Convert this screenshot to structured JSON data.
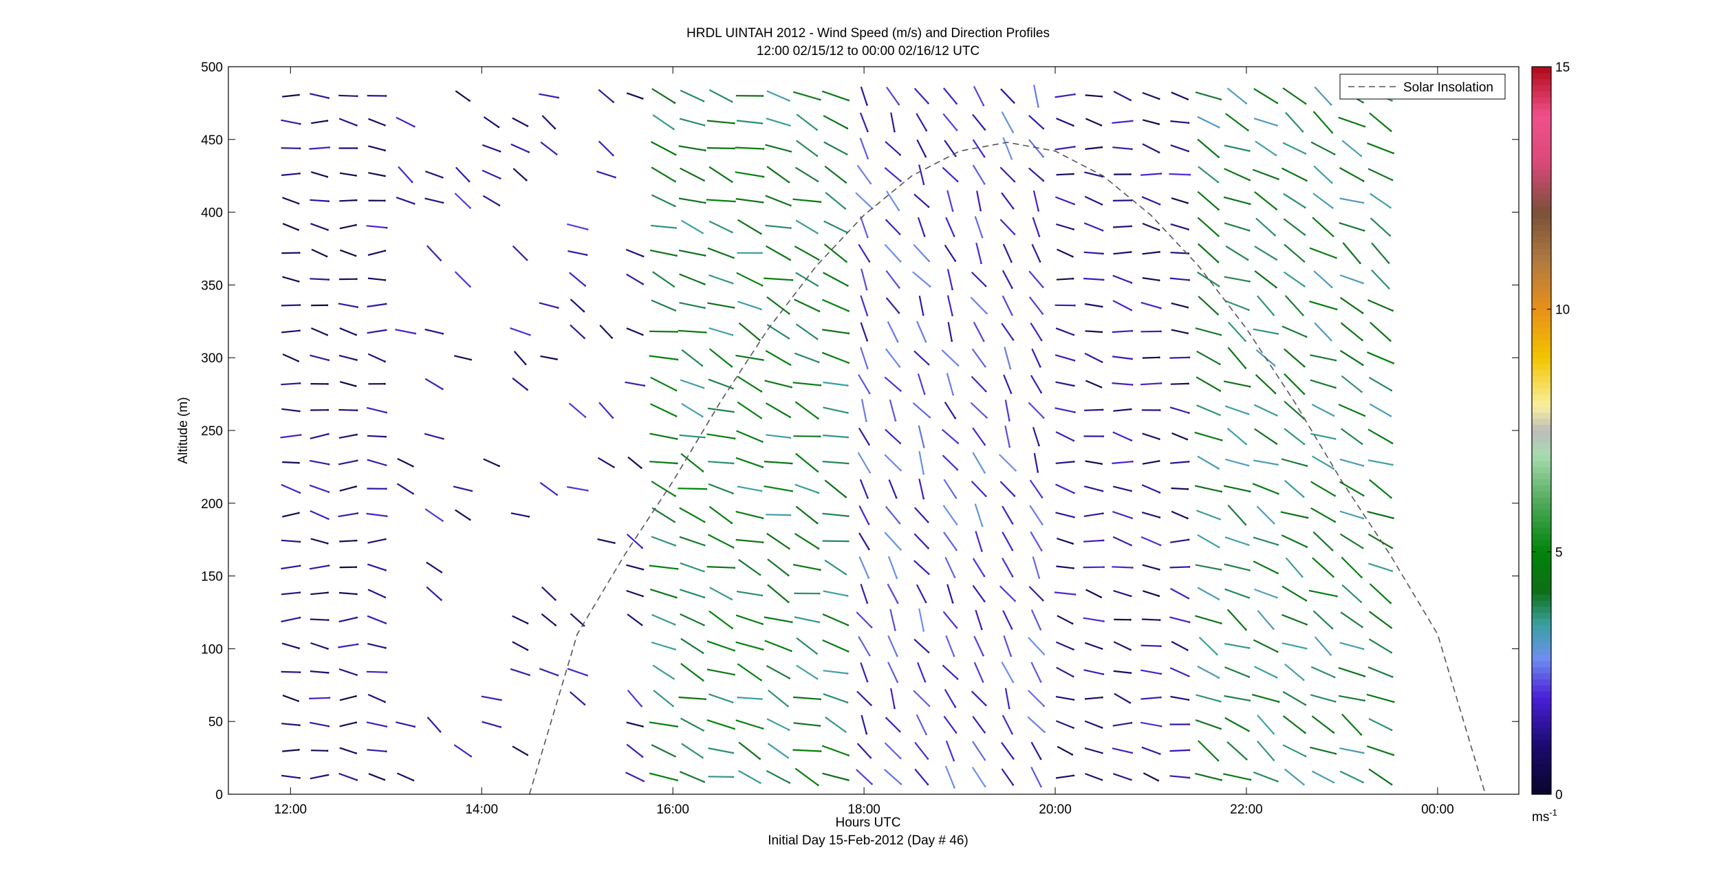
{
  "chart_data": {
    "type": "wind_barb_profile",
    "title": "HRDL UINTAH 2012 - Wind Speed (m/s) and Direction Profiles",
    "subtitle": "12:00 02/15/12 to 00:00 02/16/12  UTC",
    "xlabel": "Hours UTC",
    "xlabel_sub": "Initial Day 15-Feb-2012 (Day # 46)",
    "ylabel": "Altitude (m)",
    "x_unit": "hours UTC from 12:00 02/15/12",
    "xlim": [
      11.35,
      24.85
    ],
    "ylim": [
      0,
      500
    ],
    "x_ticks": [
      12,
      14,
      16,
      18,
      20,
      22,
      24
    ],
    "x_tick_labels": [
      "12:00",
      "14:00",
      "16:00",
      "18:00",
      "20:00",
      "22:00",
      "00:00"
    ],
    "y_ticks": [
      0,
      50,
      100,
      150,
      200,
      250,
      300,
      350,
      400,
      450,
      500
    ],
    "y_tick_labels": [
      "0",
      "50",
      "100",
      "150",
      "200",
      "250",
      "300",
      "350",
      "400",
      "450",
      "500"
    ],
    "legend": {
      "entries": [
        "Solar Insolation"
      ],
      "placement": "top-right",
      "line_style": "dashed",
      "color": "#555555"
    },
    "colorbar": {
      "range": [
        0,
        15
      ],
      "ticks": [
        0,
        5,
        10,
        15
      ],
      "tick_labels": [
        "0",
        "5",
        "10",
        "15"
      ],
      "unit_label": "ms",
      "unit_exponent": "-1",
      "colors": [
        [
          0,
          "#08062a"
        ],
        [
          1,
          "#1c0a6e"
        ],
        [
          2,
          "#4a1fd6"
        ],
        [
          2.8,
          "#6f8ef0"
        ],
        [
          3.5,
          "#3aa0a0"
        ],
        [
          4.2,
          "#0e6e16"
        ],
        [
          5,
          "#00840a"
        ],
        [
          6,
          "#4ea858"
        ],
        [
          7,
          "#a8dcb0"
        ],
        [
          7.5,
          "#bbbbbb"
        ],
        [
          8,
          "#f8f0a0"
        ],
        [
          9,
          "#f2c400"
        ],
        [
          10,
          "#e89018"
        ],
        [
          11,
          "#b07a40"
        ],
        [
          12,
          "#7a5038"
        ],
        [
          13,
          "#d84878"
        ],
        [
          14,
          "#f0508a"
        ],
        [
          15,
          "#b00818"
        ]
      ]
    },
    "series": [
      {
        "name": "Solar Insolation",
        "type": "dashed_curve",
        "x": [
          14.5,
          15.0,
          15.5,
          16.0,
          16.5,
          17.0,
          17.5,
          18.0,
          18.5,
          19.0,
          19.5,
          20.0,
          20.5,
          21.0,
          21.5,
          22.0,
          22.5,
          23.0,
          23.5,
          24.0,
          24.5
        ],
        "y": [
          0,
          110,
          165,
          215,
          270,
          320,
          363,
          398,
          425,
          442,
          448,
          442,
          425,
          398,
          363,
          320,
          270,
          215,
          165,
          110,
          0
        ]
      }
    ],
    "profile_times": [
      12.0,
      12.3,
      12.6,
      12.9,
      13.2,
      13.5,
      13.8,
      14.1,
      14.4,
      14.7,
      15.0,
      15.3,
      15.6,
      15.9,
      16.2,
      16.5,
      16.8,
      17.1,
      17.4,
      17.7,
      18.0,
      18.3,
      18.6,
      18.9,
      19.2,
      19.5,
      19.8,
      20.1,
      20.4,
      20.7,
      21.0,
      21.3,
      21.6,
      21.9,
      22.2,
      22.5,
      22.8,
      23.1,
      23.4
    ],
    "profile_altitudes": [
      12,
      30,
      48,
      66,
      84,
      102,
      120,
      138,
      156,
      174,
      192,
      210,
      228,
      246,
      264,
      282,
      300,
      318,
      336,
      354,
      372,
      390,
      408,
      426,
      444,
      462,
      480
    ],
    "notes_periods": [
      {
        "from": 12.0,
        "to": 13.0,
        "speed": 1.2,
        "direction_deg": 275,
        "max_alt": 490
      },
      {
        "from": 13.0,
        "to": 15.7,
        "speed": 1.4,
        "direction_deg": 300,
        "max_alt": 490,
        "sparse": true
      },
      {
        "from": 15.9,
        "to": 17.9,
        "speed": 4.2,
        "direction_deg": 290,
        "max_alt": 490
      },
      {
        "from": 18.0,
        "to": 19.9,
        "speed": 2.2,
        "direction_deg": 330,
        "max_alt": 490
      },
      {
        "from": 20.0,
        "to": 21.4,
        "speed": 1.3,
        "direction_deg": 280,
        "max_alt": 490
      },
      {
        "from": 21.5,
        "to": 23.4,
        "speed": 4.0,
        "direction_deg": 300,
        "max_alt": 490
      }
    ]
  }
}
